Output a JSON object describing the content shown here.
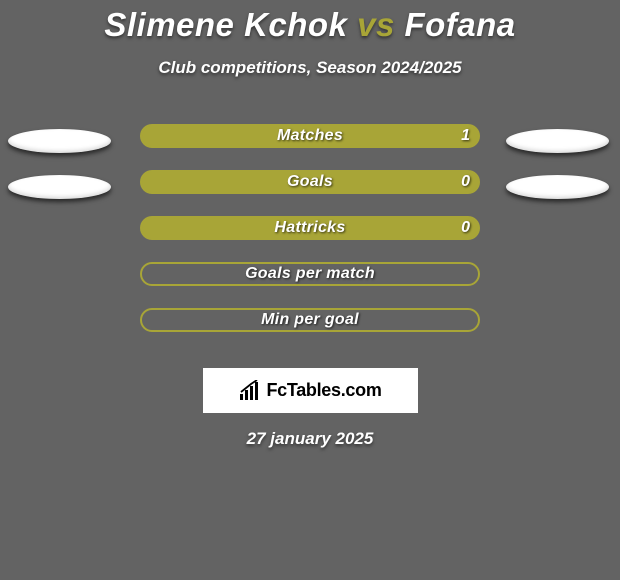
{
  "title": {
    "player1": "Slimene Kchok",
    "vs": "vs",
    "player2": "Fofana"
  },
  "subtitle": "Club competitions, Season 2024/2025",
  "rows": [
    {
      "label": "Matches",
      "value": "1",
      "filled": true,
      "show_value": true,
      "left_ellipse": true,
      "right_ellipse": true
    },
    {
      "label": "Goals",
      "value": "0",
      "filled": true,
      "show_value": true,
      "left_ellipse": true,
      "right_ellipse": true
    },
    {
      "label": "Hattricks",
      "value": "0",
      "filled": true,
      "show_value": true,
      "left_ellipse": false,
      "right_ellipse": false
    },
    {
      "label": "Goals per match",
      "value": "",
      "filled": false,
      "show_value": false,
      "left_ellipse": false,
      "right_ellipse": false
    },
    {
      "label": "Min per goal",
      "value": "",
      "filled": false,
      "show_value": false,
      "left_ellipse": false,
      "right_ellipse": false
    }
  ],
  "logo_text": "FcTables.com",
  "date": "27 january 2025",
  "colors": {
    "background": "#636363",
    "accent": "#a8a537",
    "ellipse": "#ffffff",
    "text": "#ffffff"
  }
}
